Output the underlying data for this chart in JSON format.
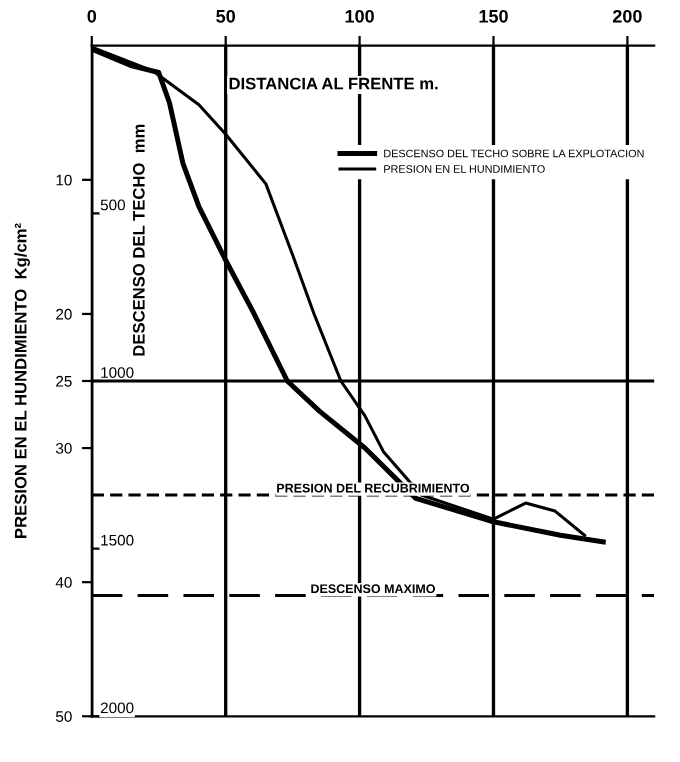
{
  "chart_data": {
    "type": "line",
    "xlabel": "DISTANCIA AL FRENTE m.",
    "ylabel": "PRESION EN EL HUNDIMIENTO  Kg/cm²",
    "y2label": "DESCENSO DEL TECHO  mm",
    "xlim": [
      0,
      210
    ],
    "xticks": [
      0,
      50,
      100,
      150,
      200
    ],
    "ylim": [
      50,
      0
    ],
    "yticks": [
      10,
      20,
      25,
      30,
      40,
      50
    ],
    "y2lim": [
      2000,
      0
    ],
    "y2ticks": [
      500,
      1000,
      1500,
      2000
    ],
    "grid": "x",
    "legend": "top right",
    "marker": "none",
    "line_style": "solid",
    "series": [
      {
        "name": "DESCENSO DEL TECHO SOBRE LA EXPLOTACION",
        "color": "#000000",
        "axis": "y2",
        "x": [
          0,
          15,
          25,
          29,
          34,
          40,
          50,
          60,
          73,
          85,
          102,
          121,
          150,
          175,
          191
        ],
        "values": [
          10,
          60,
          80,
          170,
          350,
          480,
          640,
          790,
          1000,
          1090,
          1200,
          1350,
          1420,
          1460,
          1480
        ]
      },
      {
        "name": "PRESION EN EL HUNDIMIENTO",
        "color": "#000000",
        "x": [
          0,
          23,
          40,
          50,
          65,
          75,
          83,
          93,
          102,
          109,
          123,
          150,
          162,
          173,
          184
        ],
        "values": [
          0.1,
          1.9,
          4.4,
          6.6,
          10.3,
          15.6,
          20,
          25,
          27.6,
          30.3,
          33.5,
          35.3,
          34.1,
          34.7,
          36.5
        ]
      }
    ],
    "ref_lines": [
      {
        "axis": "y2",
        "value": 1000,
        "color": "#000000",
        "line_style": "solid"
      },
      {
        "axis": "y",
        "value": 33.5,
        "label": "PRESION DEL RECUBRIMIENTO",
        "color": "#000000",
        "line_style": "dashed"
      },
      {
        "axis": "y2",
        "value": 1640,
        "label": "DESCENSO MAXIMO",
        "color": "#000000",
        "line_style": "longdash"
      }
    ]
  }
}
